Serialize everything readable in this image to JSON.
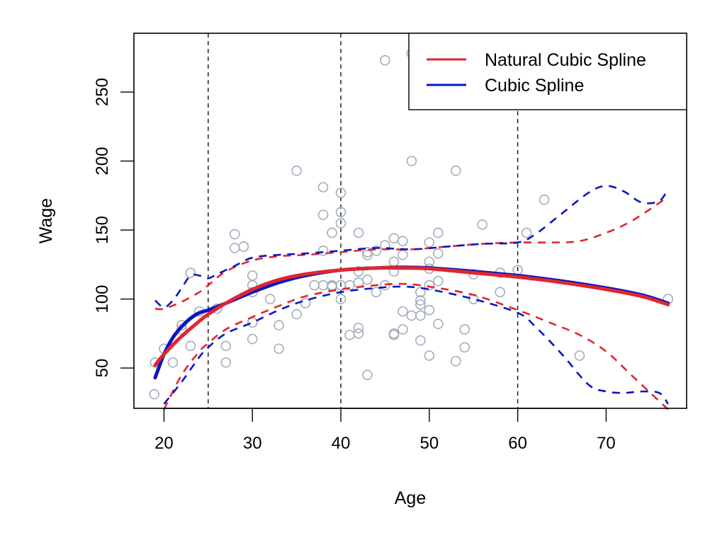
{
  "chart_data": {
    "type": "scatter",
    "title": "",
    "xlabel": "Age",
    "ylabel": "Wage",
    "xlim": [
      16.6,
      79.1
    ],
    "ylim": [
      20.8,
      292.6
    ],
    "xticks": [
      20,
      30,
      40,
      50,
      60,
      70
    ],
    "yticks": [
      50,
      100,
      150,
      200,
      250
    ],
    "xtick_labels": [
      "20",
      "30",
      "40",
      "50",
      "60",
      "70"
    ],
    "ytick_labels": [
      "50",
      "100",
      "150",
      "200",
      "250"
    ],
    "grid": false,
    "knots": [
      25,
      40,
      60
    ],
    "legend": {
      "placement": "top-right",
      "entries": [
        {
          "label": "Natural Cubic Spline",
          "color": "#e0262f"
        },
        {
          "label": "Cubic Spline",
          "color": "#0a16c2"
        }
      ]
    },
    "points_color": "#a3acbc",
    "points": [
      [
        18.9,
        31
      ],
      [
        19,
        54
      ],
      [
        20,
        64
      ],
      [
        21,
        54
      ],
      [
        22,
        81
      ],
      [
        22,
        78
      ],
      [
        23,
        66
      ],
      [
        23,
        119
      ],
      [
        24,
        91
      ],
      [
        26,
        93
      ],
      [
        27,
        54
      ],
      [
        27,
        66
      ],
      [
        28,
        147
      ],
      [
        28,
        137
      ],
      [
        29,
        138
      ],
      [
        30,
        117
      ],
      [
        30,
        110
      ],
      [
        30,
        105
      ],
      [
        30,
        83
      ],
      [
        30,
        71
      ],
      [
        32,
        100
      ],
      [
        33,
        81
      ],
      [
        33,
        64
      ],
      [
        35,
        193
      ],
      [
        35,
        89
      ],
      [
        36,
        97
      ],
      [
        37,
        110
      ],
      [
        38,
        181
      ],
      [
        38,
        161
      ],
      [
        38,
        135
      ],
      [
        38,
        110
      ],
      [
        39,
        148
      ],
      [
        39,
        110
      ],
      [
        39,
        109
      ],
      [
        40,
        177
      ],
      [
        40,
        163
      ],
      [
        40,
        155
      ],
      [
        40,
        100
      ],
      [
        40,
        110
      ],
      [
        41,
        74
      ],
      [
        41,
        110
      ],
      [
        42,
        148
      ],
      [
        42,
        120
      ],
      [
        42,
        112
      ],
      [
        42,
        79
      ],
      [
        42,
        75
      ],
      [
        43,
        134
      ],
      [
        43,
        132
      ],
      [
        43,
        114
      ],
      [
        43,
        45
      ],
      [
        44,
        105
      ],
      [
        44,
        135
      ],
      [
        45,
        273
      ],
      [
        45,
        110
      ],
      [
        45,
        139
      ],
      [
        46,
        144
      ],
      [
        46,
        120
      ],
      [
        46,
        127
      ],
      [
        46,
        74
      ],
      [
        46,
        75
      ],
      [
        47,
        142
      ],
      [
        47,
        132
      ],
      [
        47,
        91
      ],
      [
        47,
        78
      ],
      [
        48,
        278
      ],
      [
        48,
        200
      ],
      [
        48,
        88
      ],
      [
        49,
        105
      ],
      [
        49,
        99
      ],
      [
        49,
        96
      ],
      [
        49,
        88
      ],
      [
        49,
        70
      ],
      [
        50,
        141
      ],
      [
        50,
        127
      ],
      [
        50,
        122
      ],
      [
        50,
        110
      ],
      [
        50,
        92
      ],
      [
        50,
        59
      ],
      [
        51,
        282
      ],
      [
        51,
        148
      ],
      [
        51,
        133
      ],
      [
        51,
        113
      ],
      [
        51,
        82
      ],
      [
        53,
        193
      ],
      [
        53,
        55
      ],
      [
        54,
        78
      ],
      [
        54,
        65
      ],
      [
        55,
        118
      ],
      [
        55,
        100
      ],
      [
        56,
        154
      ],
      [
        58,
        119
      ],
      [
        58,
        105
      ],
      [
        60,
        121
      ],
      [
        61,
        148
      ],
      [
        63,
        172
      ],
      [
        67,
        59
      ],
      [
        77,
        100
      ]
    ],
    "series": [
      {
        "name": "Natural Cubic Spline",
        "role": "fit",
        "color": "#e0262f",
        "x": [
          19,
          20,
          22,
          24,
          25,
          27,
          30,
          33,
          36,
          40,
          44,
          47,
          50,
          55,
          60,
          65,
          70,
          74,
          77
        ],
        "y": [
          52,
          60,
          73,
          84,
          89,
          97,
          107,
          114,
          118,
          121,
          122.5,
          122.5,
          122,
          119,
          116,
          112,
          107,
          102,
          96
        ]
      },
      {
        "name": "Cubic Spline",
        "role": "fit",
        "color": "#0a16c2",
        "x": [
          19,
          20,
          21,
          22,
          23,
          24,
          25,
          27,
          30,
          33,
          36,
          40,
          44,
          47,
          50,
          55,
          60,
          65,
          70,
          74,
          77
        ],
        "y": [
          43,
          60,
          72,
          80,
          86,
          90,
          92,
          97,
          105,
          112,
          117,
          121,
          122.5,
          123,
          122.5,
          120,
          117,
          113,
          108,
          103,
          97
        ]
      },
      {
        "name": "Natural Cubic Spline upper band",
        "role": "band",
        "color": "#e0262f",
        "x": [
          19,
          20,
          22,
          24,
          25,
          27,
          30,
          33,
          36,
          40,
          44,
          48,
          52,
          56,
          60,
          64,
          67,
          70,
          73,
          77
        ],
        "y": [
          93,
          93,
          98,
          105,
          110,
          120,
          128,
          131,
          132,
          134,
          136,
          136,
          138,
          140,
          141,
          141,
          142,
          148,
          157,
          174
        ]
      },
      {
        "name": "Natural Cubic Spline lower band",
        "role": "band",
        "color": "#e0262f",
        "x": [
          20,
          22,
          24,
          25,
          27,
          30,
          33,
          36,
          40,
          44,
          47,
          50,
          55,
          60,
          64,
          67,
          70,
          73,
          77
        ],
        "y": [
          20,
          45,
          62,
          68,
          78,
          87,
          95,
          102,
          107,
          110,
          111,
          109,
          103,
          92,
          82,
          74,
          62,
          44,
          20
        ]
      },
      {
        "name": "Cubic Spline upper band",
        "role": "band",
        "color": "#0a16c2",
        "x": [
          19,
          20,
          21,
          22,
          23,
          24,
          25,
          26,
          28,
          30,
          33,
          36,
          40,
          44,
          48,
          52,
          56,
          60,
          62,
          65,
          68,
          70,
          72,
          74,
          76,
          77
        ],
        "y": [
          99,
          94,
          99,
          108,
          117,
          117,
          115,
          118,
          124,
          130,
          132,
          133,
          135,
          137,
          136,
          138,
          140,
          141,
          147,
          162,
          177,
          182,
          178,
          170,
          171,
          180
        ]
      },
      {
        "name": "Cubic Spline lower band",
        "role": "band",
        "color": "#0a16c2",
        "x": [
          20,
          22,
          24,
          25,
          27,
          30,
          33,
          36,
          40,
          44,
          47,
          50,
          55,
          60,
          62,
          65,
          68,
          70,
          72,
          74,
          76,
          77
        ],
        "y": [
          24,
          40,
          58,
          65,
          75,
          83,
          92,
          99,
          105,
          108,
          109,
          107,
          100,
          90,
          80,
          60,
          38,
          33,
          32,
          33,
          32,
          24
        ]
      }
    ]
  }
}
